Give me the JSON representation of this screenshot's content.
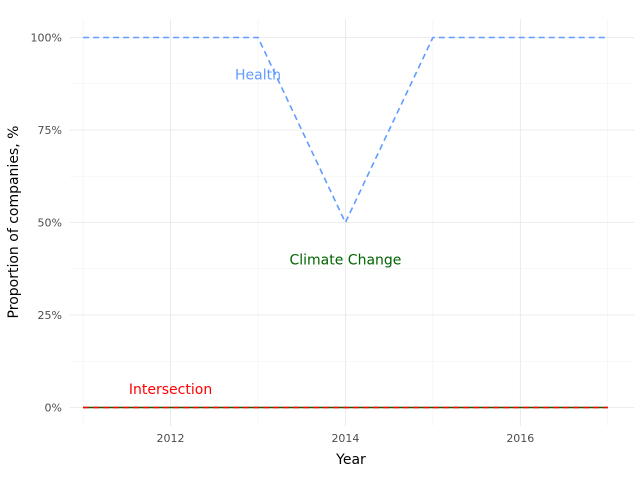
{
  "chart_data": {
    "type": "line",
    "xlabel": "Year",
    "ylabel": "Proportion of companies, %",
    "xlim": [
      2010.85,
      2017.3
    ],
    "ylim": [
      -0.05,
      1.05
    ],
    "x_ticks": [
      2012,
      2014,
      2016
    ],
    "y_ticks": [
      0,
      0.25,
      0.5,
      0.75,
      1.0
    ],
    "y_tick_labels": [
      "0%",
      "25%",
      "50%",
      "75%",
      "100%"
    ],
    "grid": true,
    "legend": "none",
    "x": [
      2011,
      2012,
      2013,
      2014,
      2015,
      2016,
      2017
    ],
    "series": [
      {
        "name": "Health",
        "values": [
          1.0,
          1.0,
          1.0,
          0.5,
          1.0,
          1.0,
          1.0
        ],
        "color": "#619CFF",
        "dash": "dashed",
        "label_at": [
          2013,
          0.9
        ]
      },
      {
        "name": "Climate Change",
        "values": [
          0,
          0,
          0,
          0,
          0,
          0,
          0
        ],
        "color": "#006400",
        "dash": "solid",
        "label_at": [
          2014,
          0.4
        ]
      },
      {
        "name": "Intersection",
        "values": [
          0,
          0,
          0,
          0,
          0,
          0,
          0
        ],
        "color": "#FF0000",
        "dash": "dashed",
        "label_at": [
          2012,
          0.05
        ]
      }
    ]
  }
}
